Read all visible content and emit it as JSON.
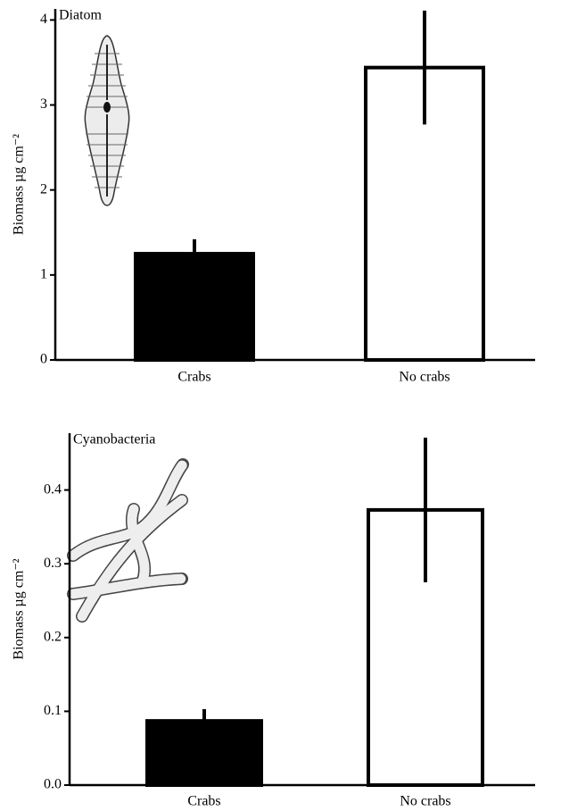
{
  "chart_data": [
    {
      "type": "bar",
      "title": "Diatom",
      "ylabel": "Biomass µg cm⁻²",
      "categories": [
        "Crabs",
        "No crabs"
      ],
      "values": [
        1.25,
        3.44
      ],
      "errors": [
        0.17,
        0.67
      ],
      "colors": [
        "#000000",
        "#ffffff"
      ],
      "edgecolor": "#000000",
      "ylim": [
        0,
        4.13
      ],
      "yticks": [
        0,
        1,
        2,
        3,
        4
      ]
    },
    {
      "type": "bar",
      "title": "Cyanobacteria",
      "ylabel": "Biomass µg cm⁻²",
      "categories": [
        "Crabs",
        "No crabs"
      ],
      "values": [
        0.087,
        0.373
      ],
      "errors": [
        0.016,
        0.098
      ],
      "colors": [
        "#000000",
        "#ffffff"
      ],
      "edgecolor": "#000000",
      "ylim": [
        0,
        0.477
      ],
      "yticks": [
        {
          "value": 0,
          "label": "0.0"
        },
        0.1,
        0.2,
        0.3,
        0.4
      ]
    }
  ]
}
